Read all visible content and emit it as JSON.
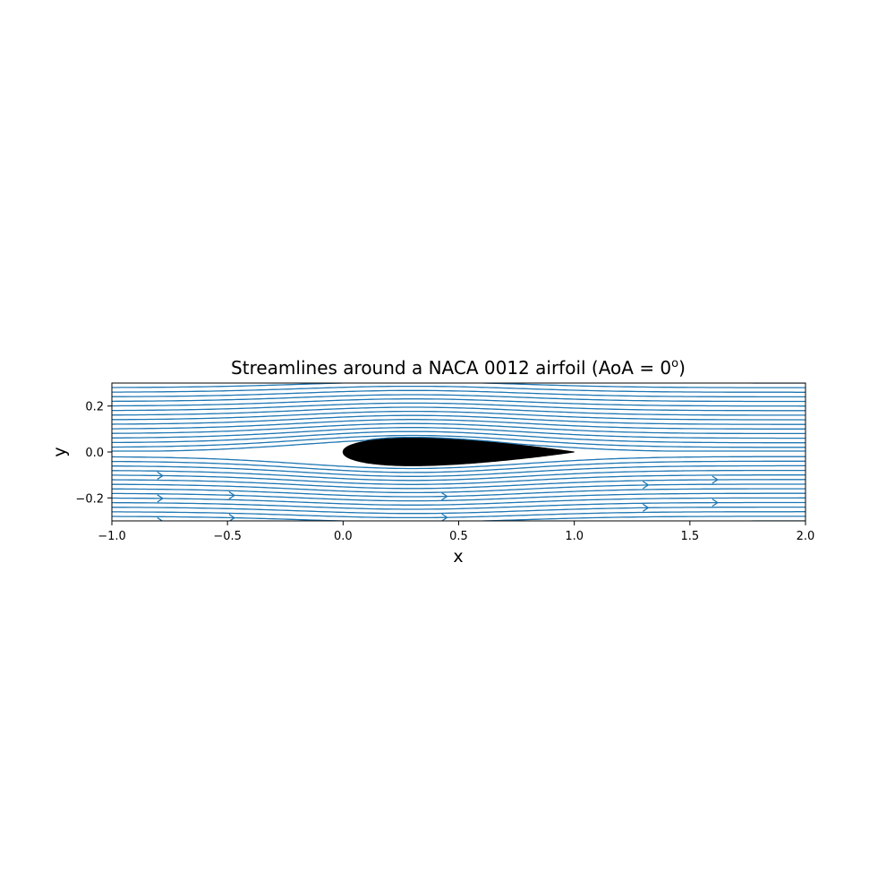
{
  "chart_data": {
    "type": "streamplot",
    "title": "Streamlines around a NACA 0012 airfoil (AoA = 0",
    "title_superscript": "o",
    "title_suffix": ")",
    "xlabel": "x",
    "ylabel": "y",
    "xlim": [
      -1.0,
      2.0
    ],
    "ylim": [
      -0.3,
      0.3
    ],
    "xticks": [
      -1.0,
      -0.5,
      0.0,
      0.5,
      1.0,
      1.5,
      2.0
    ],
    "xtick_labels": [
      "−1.0",
      "−0.5",
      "0.0",
      "0.5",
      "1.0",
      "1.5",
      "2.0"
    ],
    "yticks": [
      -0.2,
      0.0,
      0.2
    ],
    "ytick_labels": [
      "−0.2",
      "0.0",
      "0.2"
    ],
    "grid": false,
    "streamline_color": "#1f77b4",
    "airfoil": {
      "name": "NACA 0012",
      "angle_of_attack_deg": 0,
      "chord_start": 0.0,
      "chord_end": 1.0,
      "thickness_ratio": 0.12,
      "color": "#000000"
    }
  }
}
